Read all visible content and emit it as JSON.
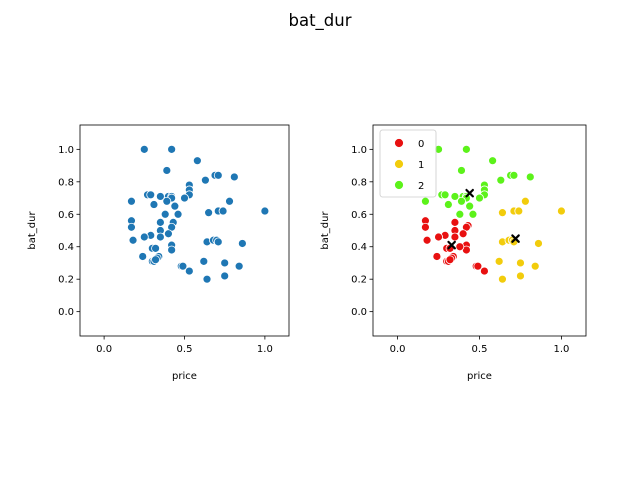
{
  "figure": {
    "suptitle": "bat_dur"
  },
  "chart_data": [
    {
      "type": "scatter",
      "xlabel": "price",
      "ylabel": "bat_dur",
      "xlim": [
        -0.15,
        1.15
      ],
      "ylim": [
        -0.15,
        1.15
      ],
      "xticks": [
        "0.0",
        "0.5",
        "1.0"
      ],
      "xtick_values": [
        0,
        0.5,
        1.0
      ],
      "yticks": [
        "0.0",
        "0.2",
        "0.4",
        "0.6",
        "0.8",
        "1.0"
      ],
      "ytick_values": [
        0,
        0.2,
        0.4,
        0.6,
        0.8,
        1.0
      ],
      "color": "#1f77b4",
      "series": [
        {
          "points": [
            [
              0.25,
              1.0
            ],
            [
              0.42,
              1.0
            ],
            [
              0.58,
              0.93
            ],
            [
              0.39,
              0.87
            ],
            [
              0.69,
              0.84
            ],
            [
              0.71,
              0.84
            ],
            [
              0.81,
              0.83
            ],
            [
              0.63,
              0.81
            ],
            [
              0.53,
              0.78
            ],
            [
              0.27,
              0.72
            ],
            [
              0.29,
              0.72
            ],
            [
              0.35,
              0.71
            ],
            [
              0.4,
              0.71
            ],
            [
              0.42,
              0.71
            ],
            [
              0.53,
              0.75
            ],
            [
              0.53,
              0.72
            ],
            [
              0.42,
              0.7
            ],
            [
              0.5,
              0.7
            ],
            [
              0.39,
              0.68
            ],
            [
              0.17,
              0.68
            ],
            [
              0.31,
              0.66
            ],
            [
              0.44,
              0.65
            ],
            [
              0.78,
              0.68
            ],
            [
              0.71,
              0.62
            ],
            [
              0.74,
              0.62
            ],
            [
              0.65,
              0.61
            ],
            [
              1.0,
              0.62
            ],
            [
              0.38,
              0.6
            ],
            [
              0.46,
              0.6
            ],
            [
              0.35,
              0.55
            ],
            [
              0.17,
              0.56
            ],
            [
              0.43,
              0.55
            ],
            [
              0.42,
              0.52
            ],
            [
              0.17,
              0.52
            ],
            [
              0.35,
              0.5
            ],
            [
              0.29,
              0.47
            ],
            [
              0.25,
              0.46
            ],
            [
              0.4,
              0.48
            ],
            [
              0.18,
              0.44
            ],
            [
              0.35,
              0.46
            ],
            [
              0.64,
              0.43
            ],
            [
              0.68,
              0.44
            ],
            [
              0.7,
              0.44
            ],
            [
              0.71,
              0.43
            ],
            [
              0.86,
              0.42
            ],
            [
              0.42,
              0.41
            ],
            [
              0.3,
              0.39
            ],
            [
              0.32,
              0.39
            ],
            [
              0.42,
              0.38
            ],
            [
              0.24,
              0.34
            ],
            [
              0.34,
              0.34
            ],
            [
              0.33,
              0.33
            ],
            [
              0.3,
              0.31
            ],
            [
              0.31,
              0.31
            ],
            [
              0.32,
              0.32
            ],
            [
              0.62,
              0.31
            ],
            [
              0.75,
              0.3
            ],
            [
              0.48,
              0.28
            ],
            [
              0.49,
              0.28
            ],
            [
              0.84,
              0.28
            ],
            [
              0.53,
              0.25
            ],
            [
              0.75,
              0.22
            ],
            [
              0.64,
              0.2
            ]
          ]
        }
      ]
    },
    {
      "type": "scatter",
      "xlabel": "price",
      "ylabel": "bat_dur",
      "xlim": [
        -0.15,
        1.15
      ],
      "ylim": [
        -0.15,
        1.15
      ],
      "xticks": [
        "0.0",
        "0.5",
        "1.0"
      ],
      "xtick_values": [
        0,
        0.5,
        1.0
      ],
      "yticks": [
        "0.0",
        "0.2",
        "0.4",
        "0.6",
        "0.8",
        "1.0"
      ],
      "ytick_values": [
        0,
        0.2,
        0.4,
        0.6,
        0.8,
        1.0
      ],
      "legend": {
        "position": "upper-left"
      },
      "series": [
        {
          "name": "0",
          "color": "#e81010",
          "points": [
            [
              0.17,
              0.56
            ],
            [
              0.35,
              0.55
            ],
            [
              0.17,
              0.52
            ],
            [
              0.43,
              0.53
            ],
            [
              0.35,
              0.5
            ],
            [
              0.42,
              0.52
            ],
            [
              0.29,
              0.47
            ],
            [
              0.25,
              0.46
            ],
            [
              0.4,
              0.48
            ],
            [
              0.18,
              0.44
            ],
            [
              0.35,
              0.46
            ],
            [
              0.42,
              0.41
            ],
            [
              0.3,
              0.39
            ],
            [
              0.32,
              0.39
            ],
            [
              0.42,
              0.38
            ],
            [
              0.24,
              0.34
            ],
            [
              0.34,
              0.34
            ],
            [
              0.33,
              0.33
            ],
            [
              0.3,
              0.31
            ],
            [
              0.31,
              0.31
            ],
            [
              0.32,
              0.32
            ],
            [
              0.38,
              0.4
            ],
            [
              0.48,
              0.28
            ],
            [
              0.49,
              0.28
            ],
            [
              0.53,
              0.25
            ]
          ]
        },
        {
          "name": "1",
          "color": "#f2cc0c",
          "points": [
            [
              0.78,
              0.68
            ],
            [
              0.71,
              0.62
            ],
            [
              0.74,
              0.62
            ],
            [
              1.0,
              0.62
            ],
            [
              0.64,
              0.61
            ],
            [
              0.64,
              0.43
            ],
            [
              0.68,
              0.44
            ],
            [
              0.7,
              0.44
            ],
            [
              0.71,
              0.43
            ],
            [
              0.86,
              0.42
            ],
            [
              0.62,
              0.31
            ],
            [
              0.75,
              0.3
            ],
            [
              0.84,
              0.28
            ],
            [
              0.75,
              0.22
            ],
            [
              0.64,
              0.2
            ]
          ]
        },
        {
          "name": "2",
          "color": "#5cf21a",
          "points": [
            [
              0.25,
              1.0
            ],
            [
              0.42,
              1.0
            ],
            [
              0.58,
              0.93
            ],
            [
              0.39,
              0.87
            ],
            [
              0.69,
              0.84
            ],
            [
              0.71,
              0.84
            ],
            [
              0.81,
              0.83
            ],
            [
              0.63,
              0.81
            ],
            [
              0.53,
              0.78
            ],
            [
              0.27,
              0.72
            ],
            [
              0.29,
              0.72
            ],
            [
              0.35,
              0.71
            ],
            [
              0.4,
              0.71
            ],
            [
              0.42,
              0.71
            ],
            [
              0.53,
              0.75
            ],
            [
              0.53,
              0.72
            ],
            [
              0.42,
              0.7
            ],
            [
              0.5,
              0.7
            ],
            [
              0.39,
              0.68
            ],
            [
              0.17,
              0.68
            ],
            [
              0.31,
              0.66
            ],
            [
              0.44,
              0.65
            ],
            [
              0.38,
              0.6
            ],
            [
              0.46,
              0.6
            ]
          ]
        }
      ],
      "centroids": {
        "color": "#000000",
        "marker": "x",
        "points": [
          [
            0.33,
            0.41
          ],
          [
            0.44,
            0.73
          ],
          [
            0.72,
            0.45
          ]
        ]
      }
    }
  ]
}
